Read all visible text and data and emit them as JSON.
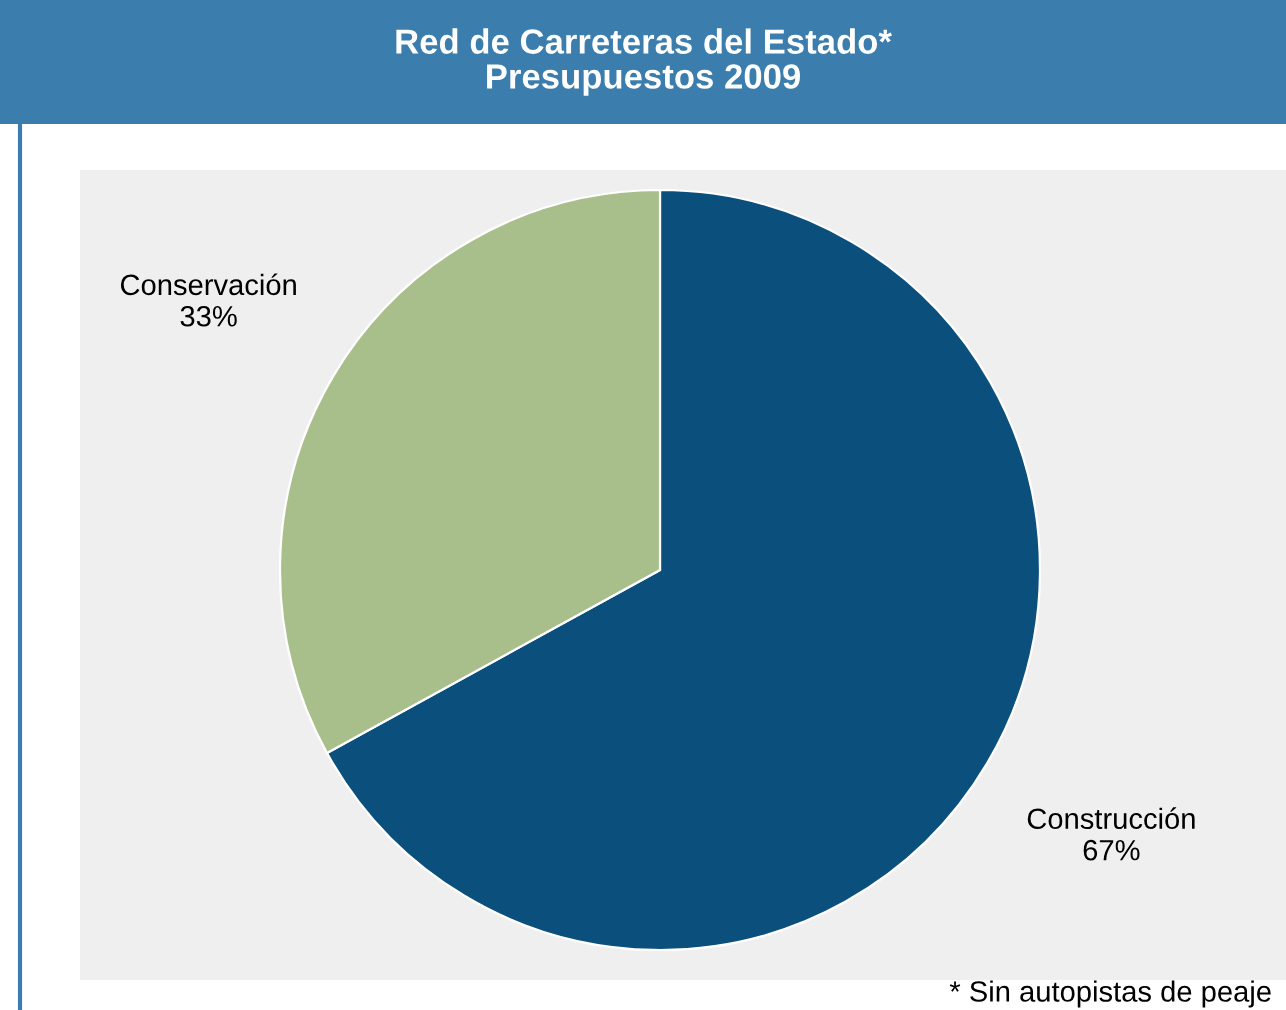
{
  "chart_data": {
    "type": "pie",
    "title": "Red de Carreteras del Estado*\nPresupuestos 2009",
    "categories": [
      "Construcción",
      "Conservación"
    ],
    "values": [
      67,
      33
    ],
    "colors": [
      "#0b4f7d",
      "#a9bf8b"
    ],
    "value_labels": [
      "67%",
      "33%"
    ],
    "annotations": [
      "* Sin autopistas de peaje"
    ]
  }
}
